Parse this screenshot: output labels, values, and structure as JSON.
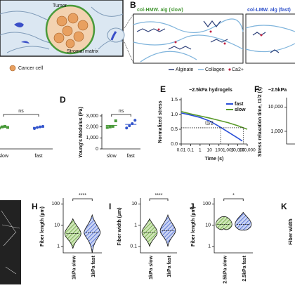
{
  "panels": {
    "letters": [
      "B",
      "D",
      "E",
      "F",
      "H",
      "I",
      "J",
      "K"
    ],
    "illustration": {
      "tumor": "Tumor",
      "cancer_cell": "Cancer cell",
      "stromal_matrix": "Stromal matrix"
    },
    "network": {
      "slow": "col-HMW. alg (slow)",
      "fast": "col-LMW. alg (fast)",
      "legend": [
        "Alginate",
        "Collagen",
        "Ca2+"
      ]
    },
    "K_ylabel": "Fiber width"
  },
  "chart_data": [
    {
      "type": "strip",
      "categories": [
        "slow",
        "fast"
      ],
      "values": [
        [
          1900,
          2000,
          2050,
          1950
        ],
        [
          1850,
          1950,
          2000,
          2050
        ]
      ],
      "colors": [
        "#4a9a3a",
        "#3355cc"
      ],
      "annotation": "ns",
      "ylim": [
        0,
        3000
      ]
    },
    {
      "type": "strip",
      "ylabel": "Young's Modulus (Pa)",
      "categories": [
        "slow",
        "fast"
      ],
      "values": [
        [
          1950,
          2000,
          2050,
          2550
        ],
        [
          1900,
          2100,
          2300,
          2600
        ]
      ],
      "colors": [
        "#4a9a3a",
        "#3355cc"
      ],
      "annotation": "ns",
      "ylim": [
        0,
        3000
      ],
      "yticks": [
        0,
        {
          "value": 1000,
          "label": "1,000"
        },
        {
          "value": 2000,
          "label": "2,000"
        },
        {
          "value": 3000,
          "label": "3,000"
        }
      ]
    },
    {
      "type": "line",
      "title": "~2.5kPa hydrogels",
      "xlabel": "Time (s)",
      "ylabel": "Normalized stress",
      "log_x": true,
      "xlim": [
        0.01,
        100000
      ],
      "xticks": [
        0.01,
        0.1,
        1,
        10,
        100,
        {
          "value": 1000,
          "label": "1,000"
        },
        {
          "value": 10000,
          "label": "10,000"
        },
        {
          "value": 100000,
          "label": "100,000"
        }
      ],
      "ylim": [
        0,
        1.5
      ],
      "yticks": [
        {
          "value": 0,
          "label": "0.0"
        },
        0.5,
        {
          "value": 1,
          "label": "1.0"
        },
        1.5
      ],
      "series": [
        {
          "name": "fast",
          "color": "#2a4fd8",
          "x": [
            0.01,
            0.1,
            1,
            10,
            100,
            1000,
            10000,
            30000
          ],
          "values": [
            1.05,
            0.98,
            0.9,
            0.78,
            0.6,
            0.4,
            0.2,
            0.1
          ]
        },
        {
          "name": "slow",
          "color": "#5a9a2a",
          "x": [
            0.01,
            0.1,
            1,
            10,
            100,
            1000,
            10000,
            100000
          ],
          "values": [
            1.1,
            1.02,
            0.95,
            0.88,
            0.8,
            0.72,
            0.62,
            0.5
          ]
        }
      ],
      "t_half": {
        "label": "t1/2",
        "level": 0.55,
        "x": [
          150,
          40000
        ]
      }
    },
    {
      "type": "partial",
      "title": "~2.5kPa",
      "ylabel": "Stress relaxation time, t1/2 (s)",
      "log_y": true,
      "ylim": [
        300,
        20000
      ],
      "yticks": [
        {
          "value": 10000,
          "label": "10,000"
        },
        {
          "value": 1000,
          "label": "1,000"
        }
      ]
    },
    {
      "type": "violin",
      "ylabel": "Fiber length (µm)",
      "log_y": true,
      "ylim": [
        0.5,
        150
      ],
      "yticks": [
        100,
        10,
        1
      ],
      "categories": [
        "1kPa slow",
        "1kPa fast"
      ],
      "values": [
        4,
        4.5
      ],
      "min": [
        0.8,
        0.5
      ],
      "max": [
        20,
        30
      ],
      "colors": [
        "#5a9a2a",
        "#3355cc"
      ],
      "annotation": "****"
    },
    {
      "type": "violin",
      "ylabel": "Fiber width (µm)",
      "log_y": true,
      "ylim": [
        0.05,
        15
      ],
      "yticks": [
        10,
        1,
        0.1
      ],
      "categories": [
        "1kPa slow",
        "1kPa fast"
      ],
      "values": [
        0.45,
        0.55
      ],
      "min": [
        0.1,
        0.1
      ],
      "max": [
        2,
        3
      ],
      "colors": [
        "#5a9a2a",
        "#3355cc"
      ],
      "annotation": "****"
    },
    {
      "type": "violin",
      "ylabel": "Fiber length (µm)",
      "log_y": true,
      "ylim": [
        0.5,
        150
      ],
      "yticks": [
        100,
        10,
        1
      ],
      "categories": [
        "2.5kPa slow",
        "2.5kPa fast"
      ],
      "values": [
        11,
        11
      ],
      "min": [
        7,
        6
      ],
      "max": [
        25,
        40
      ],
      "colors": [
        "#5a9a2a",
        "#3355cc"
      ],
      "annotation": "*"
    }
  ]
}
